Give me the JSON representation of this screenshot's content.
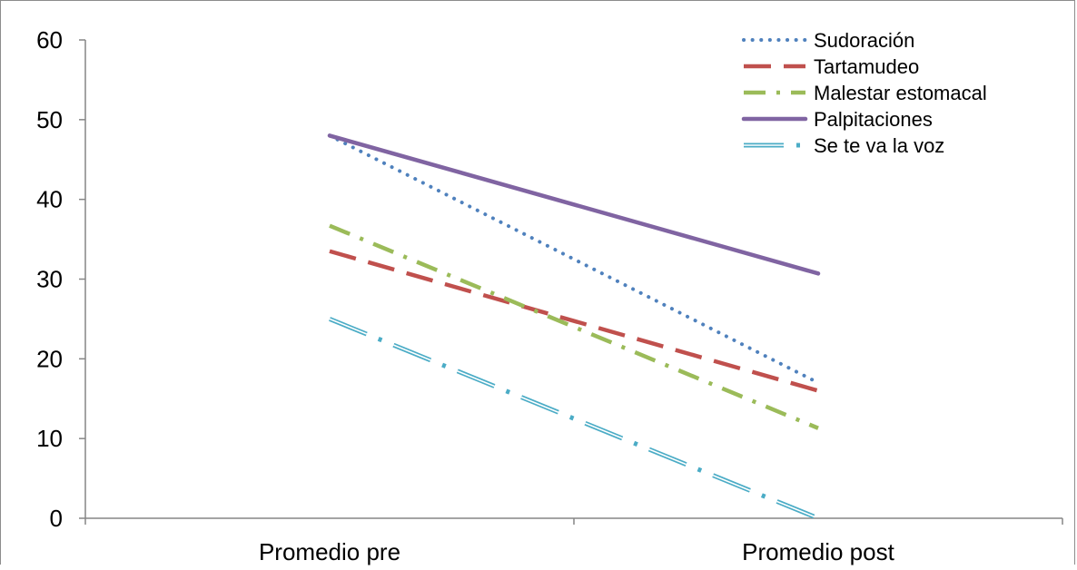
{
  "chart_data": {
    "type": "line",
    "title": "",
    "xlabel": "",
    "ylabel": "",
    "categories": [
      "Promedio pre",
      "Promedio post"
    ],
    "ylim": [
      0,
      60
    ],
    "yticks": [
      "0",
      "10",
      "20",
      "30",
      "40",
      "50",
      "60"
    ],
    "grid": false,
    "legend_position": "top-right",
    "series": [
      {
        "name": "Sudoración",
        "values": [
          48,
          17
        ],
        "color": "#4f81bd",
        "style": "dotted"
      },
      {
        "name": "Tartamudeo",
        "values": [
          33.5,
          16
        ],
        "color": "#c0504d",
        "style": "long-dash"
      },
      {
        "name": "Malestar estomacal",
        "values": [
          36.7,
          11.3
        ],
        "color": "#9bbb59",
        "style": "dash-dot"
      },
      {
        "name": "Palpitaciones",
        "values": [
          48,
          30.7
        ],
        "color": "#8064a2",
        "style": "solid"
      },
      {
        "name": "Se te va la voz",
        "values": [
          25,
          0
        ],
        "color": "#4bacc6",
        "style": "double-dash-dot"
      }
    ]
  }
}
